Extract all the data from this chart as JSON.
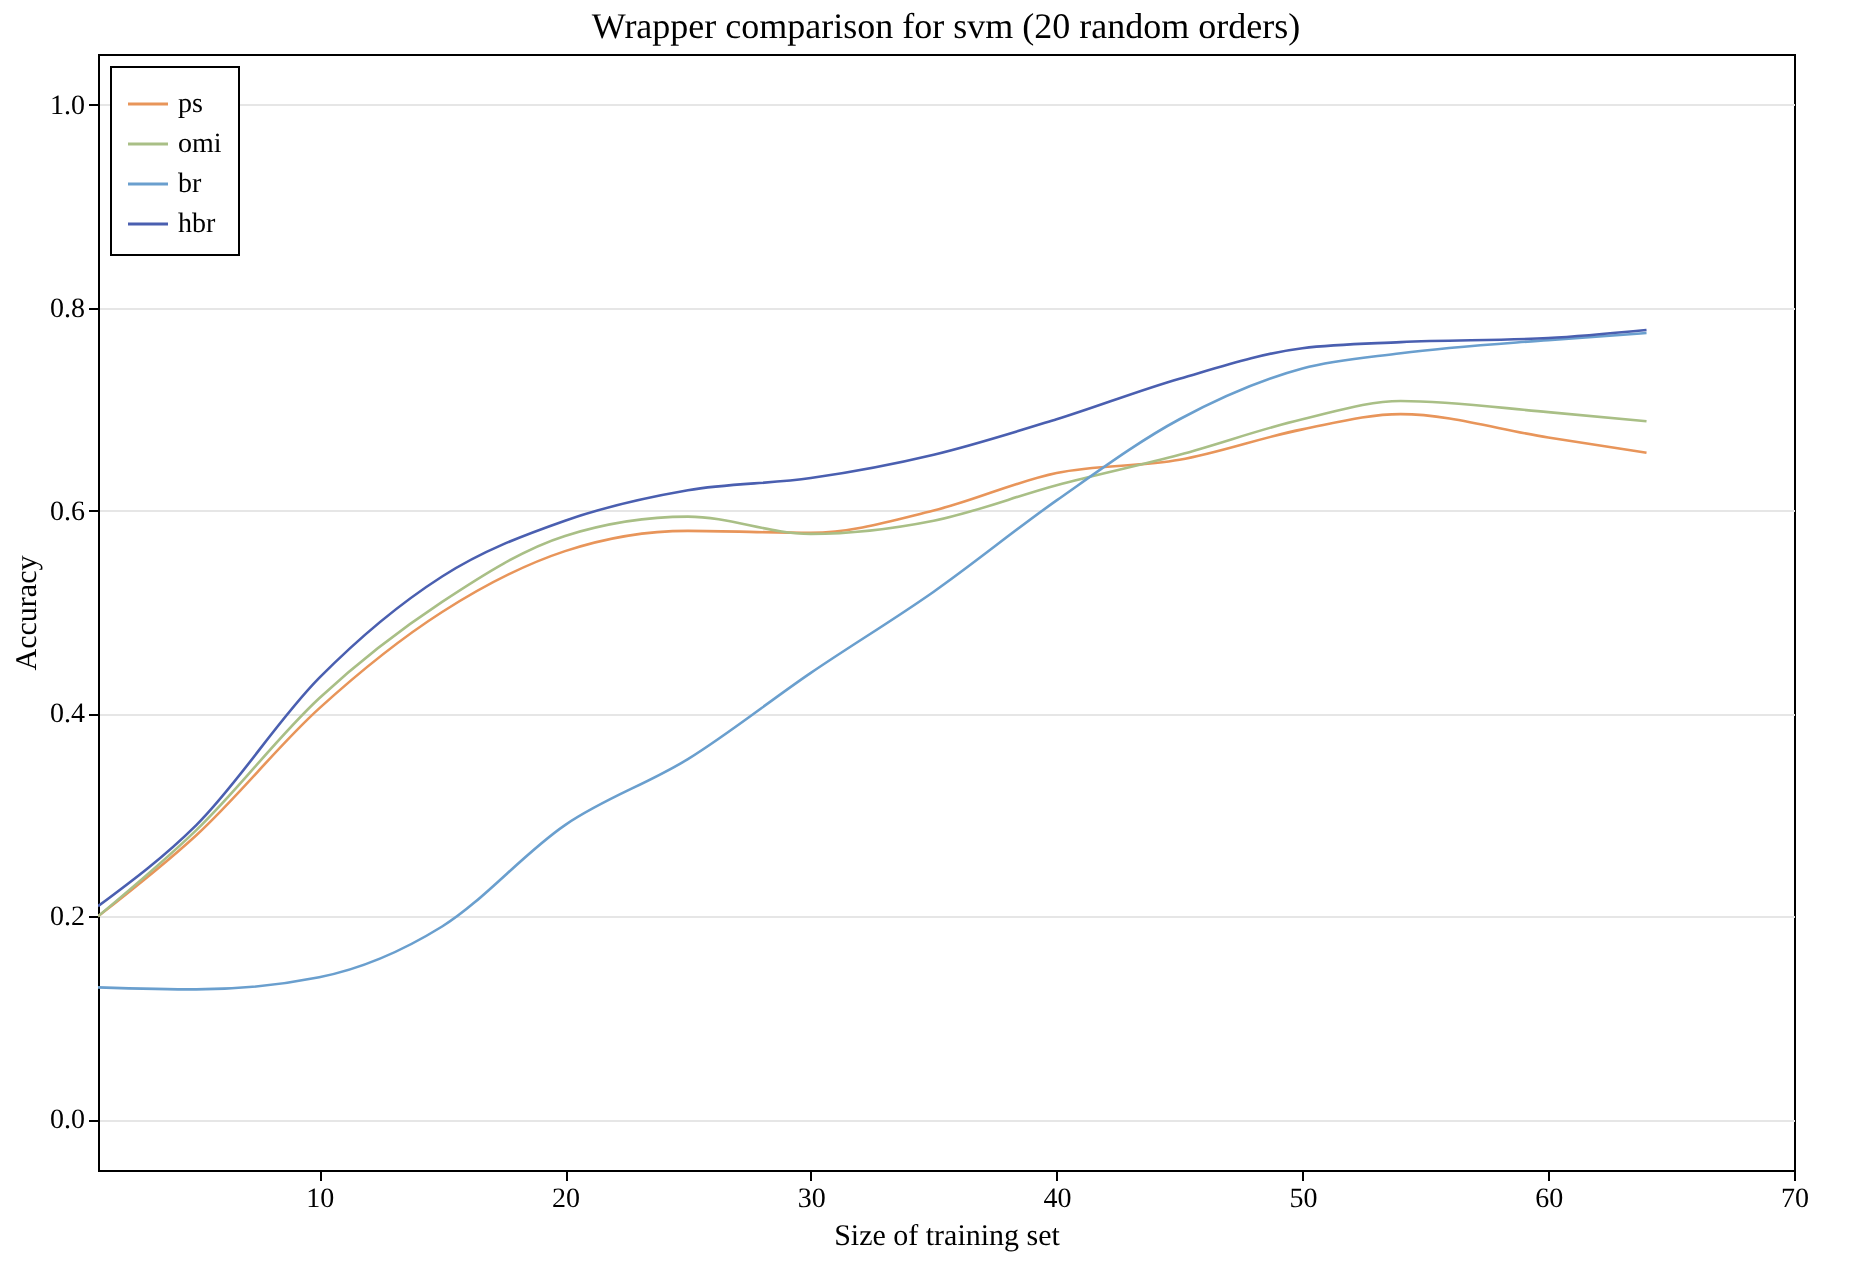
{
  "chart_data": {
    "type": "line",
    "title": "Wrapper comparison for svm (20 random orders)",
    "xlabel": "Size of training set",
    "ylabel": "Accuracy",
    "x": [
      1,
      5,
      10,
      15,
      20,
      25,
      30,
      35,
      40,
      45,
      50,
      54,
      60,
      64
    ],
    "series": [
      {
        "name": "ps",
        "color": "#e8955a",
        "values": [
          0.2,
          0.28,
          0.405,
          0.5,
          0.56,
          0.58,
          0.578,
          0.6,
          0.637,
          0.65,
          0.68,
          0.695,
          0.672,
          0.657
        ]
      },
      {
        "name": "omi",
        "color": "#a9bf86",
        "values": [
          0.2,
          0.285,
          0.415,
          0.51,
          0.575,
          0.594,
          0.577,
          0.59,
          0.625,
          0.655,
          0.69,
          0.708,
          0.697,
          0.688
        ]
      },
      {
        "name": "br",
        "color": "#6a9fce",
        "values": [
          0.13,
          0.128,
          0.14,
          0.19,
          0.29,
          0.355,
          0.44,
          0.52,
          0.61,
          0.69,
          0.74,
          0.755,
          0.768,
          0.775
        ]
      },
      {
        "name": "hbr",
        "color": "#4a5fb0",
        "values": [
          0.21,
          0.29,
          0.435,
          0.535,
          0.59,
          0.62,
          0.632,
          0.655,
          0.69,
          0.73,
          0.76,
          0.766,
          0.77,
          0.778
        ]
      }
    ],
    "xlim": [
      1,
      70
    ],
    "xticks": [
      10,
      20,
      30,
      40,
      50,
      60,
      70
    ],
    "ylim": [
      -0.05,
      1.05
    ],
    "yticks": [
      {
        "value": 0,
        "label": "0.0"
      },
      {
        "value": 0.2,
        "label": "0.2"
      },
      {
        "value": 0.4,
        "label": "0.4"
      },
      {
        "value": 0.6,
        "label": "0.6"
      },
      {
        "value": 0.8,
        "label": "0.8"
      },
      {
        "value": 1.0,
        "label": "1.0"
      }
    ],
    "grid": "y",
    "legend": "top left",
    "marker": "none",
    "line_style": "solid"
  }
}
